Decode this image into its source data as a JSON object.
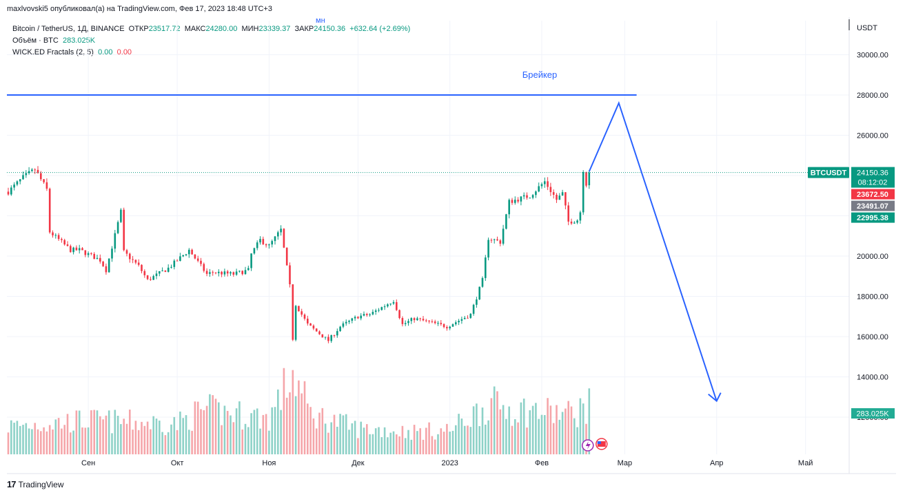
{
  "header": {
    "publisher_line": "maxlvovski5 опубликовал(а) на TradingView.com, Фев 17, 2023 18:48 UTC+3",
    "stray_mark": "мн"
  },
  "legend": {
    "symbol": "Bitcoin / TetherUS, 1Д, BINANCE",
    "open_label": "ОТКР",
    "open": "23517.72",
    "high_label": "МАКС",
    "high": "24280.00",
    "low_label": "МИН",
    "low": "23339.37",
    "close_label": "ЗАКР",
    "close": "24150.36",
    "change": "+632.64 (+2.69%)",
    "volume_label": "Объём · BTC",
    "volume": "283.025K",
    "indicator_label": "WICK.ED Fractals (2, 5)",
    "indicator_up": "0.00",
    "indicator_down": "0.00"
  },
  "footer": {
    "brand": "TradingView"
  },
  "chart_data": {
    "type": "candlestick",
    "currency_label": "USDT",
    "y_ticks": [
      12000,
      14000,
      16000,
      18000,
      20000,
      22000,
      24000,
      26000,
      28000,
      30000
    ],
    "y_tick_labels": [
      "12000.00",
      "14000.00",
      "16000.00",
      "18000.00",
      "20000.00",
      "22000.00",
      "24000.00",
      "26000.00",
      "28000.00",
      "30000.00"
    ],
    "ylim": [
      11000,
      31000
    ],
    "x_labels": [
      {
        "label": "Сен",
        "date": "2022-09-01"
      },
      {
        "label": "Окт",
        "date": "2022-10-01"
      },
      {
        "label": "Ноя",
        "date": "2022-11-01"
      },
      {
        "label": "Дек",
        "date": "2022-12-01"
      },
      {
        "label": "2023",
        "date": "2023-01-01"
      },
      {
        "label": "Фев",
        "date": "2023-02-01"
      },
      {
        "label": "Мар",
        "date": "2023-03-01"
      },
      {
        "label": "Апр",
        "date": "2023-04-01"
      },
      {
        "label": "Май",
        "date": "2023-05-01"
      }
    ],
    "first_date": "2022-08-05",
    "price_path": [
      [
        "2022-08-05",
        23200
      ],
      [
        "2022-08-10",
        23900
      ],
      [
        "2022-08-14",
        24300
      ],
      [
        "2022-08-18",
        23300
      ],
      [
        "2022-08-19",
        21200
      ],
      [
        "2022-08-26",
        20300
      ],
      [
        "2022-08-29",
        20300
      ],
      [
        "2022-09-05",
        19800
      ],
      [
        "2022-09-07",
        19300
      ],
      [
        "2022-09-12",
        22200
      ],
      [
        "2022-09-13",
        20200
      ],
      [
        "2022-09-18",
        19500
      ],
      [
        "2022-09-21",
        18800
      ],
      [
        "2022-09-28",
        19400
      ],
      [
        "2022-10-05",
        20300
      ],
      [
        "2022-10-11",
        19100
      ],
      [
        "2022-10-13",
        19200
      ],
      [
        "2022-10-20",
        19100
      ],
      [
        "2022-10-25",
        19300
      ],
      [
        "2022-10-26",
        20100
      ],
      [
        "2022-10-29",
        20800
      ],
      [
        "2022-11-01",
        20500
      ],
      [
        "2022-11-05",
        21300
      ],
      [
        "2022-11-08",
        18500
      ],
      [
        "2022-11-09",
        15900
      ],
      [
        "2022-11-10",
        17600
      ],
      [
        "2022-11-14",
        16600
      ],
      [
        "2022-11-21",
        15800
      ],
      [
        "2022-11-25",
        16500
      ],
      [
        "2022-12-01",
        17000
      ],
      [
        "2022-12-05",
        17100
      ],
      [
        "2022-12-13",
        17800
      ],
      [
        "2022-12-16",
        16600
      ],
      [
        "2022-12-20",
        16900
      ],
      [
        "2022-12-31",
        16500
      ],
      [
        "2023-01-08",
        17100
      ],
      [
        "2023-01-12",
        18800
      ],
      [
        "2023-01-14",
        20900
      ],
      [
        "2023-01-18",
        20700
      ],
      [
        "2023-01-21",
        22700
      ],
      [
        "2023-01-28",
        23000
      ],
      [
        "2023-02-02",
        23700
      ],
      [
        "2023-02-06",
        22800
      ],
      [
        "2023-02-08",
        23100
      ],
      [
        "2023-02-10",
        21700
      ],
      [
        "2023-02-13",
        21800
      ],
      [
        "2023-02-14",
        22200
      ],
      [
        "2023-02-15",
        24300
      ],
      [
        "2023-02-16",
        23600
      ],
      [
        "2023-02-17",
        24150
      ]
    ],
    "last_candle": {
      "date": "2023-02-17",
      "open": 23517.72,
      "high": 24280.0,
      "low": 23339.37,
      "close": 24150.36
    },
    "volume_path": [
      [
        "2022-08-05",
        0.35
      ],
      [
        "2022-09-01",
        0.42
      ],
      [
        "2022-10-01",
        0.38
      ],
      [
        "2022-10-10",
        0.55
      ],
      [
        "2022-11-01",
        0.45
      ],
      [
        "2022-11-09",
        1.0
      ],
      [
        "2022-11-15",
        0.5
      ],
      [
        "2022-12-01",
        0.32
      ],
      [
        "2022-12-20",
        0.28
      ],
      [
        "2023-01-01",
        0.3
      ],
      [
        "2023-01-14",
        0.62
      ],
      [
        "2023-01-25",
        0.55
      ],
      [
        "2023-02-10",
        0.5
      ],
      [
        "2023-02-17",
        0.6
      ]
    ],
    "price_labels": [
      {
        "text": "BTCUSDT",
        "value": 24150.36,
        "kind": "symbol",
        "color": "#089981"
      },
      {
        "text": "24150.36",
        "sub": "08:12:02",
        "value": 24150.36,
        "kind": "last",
        "color": "#089981"
      },
      {
        "text": "23672.50",
        "value": 23672.5,
        "kind": "level",
        "color": "#f23645"
      },
      {
        "text": "23491.07",
        "value": 23491.07,
        "kind": "level",
        "color": "#787b86"
      },
      {
        "text": "22995.38",
        "value": 22995.38,
        "kind": "level",
        "color": "#089981"
      }
    ],
    "volume_label": {
      "text": "283.025K",
      "color": "#22ab94"
    },
    "annotations": {
      "breaker_label": "Брейкер",
      "breaker_level": 28000,
      "breaker_start": "2022-08-05",
      "breaker_end": "2023-03-05",
      "projection": [
        [
          "2023-02-17",
          24200
        ],
        [
          "2023-02-27",
          27600
        ],
        [
          "2023-04-01",
          12800
        ]
      ],
      "color": "#2962ff"
    },
    "colors": {
      "up": "#089981",
      "down": "#f23645",
      "vol_up": "#8dd1c7",
      "vol_down": "#f5a5a9",
      "grid": "#f0f3fa"
    }
  }
}
